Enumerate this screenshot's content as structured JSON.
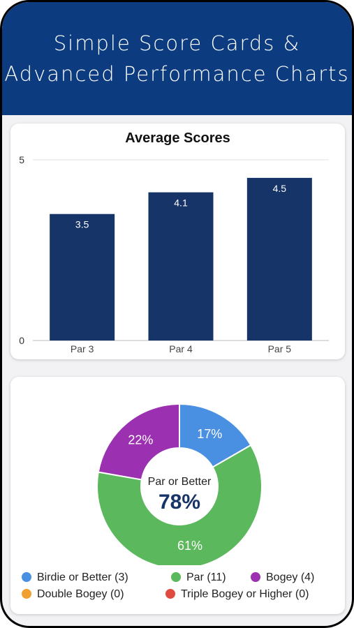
{
  "header": {
    "title_line1": "Simple Score Cards &",
    "title_line2": "Advanced Performance Charts"
  },
  "bar_chart": {
    "title": "Average Scores"
  },
  "donut_chart": {
    "center_label": "Par or Better",
    "center_value": "78%"
  },
  "legend": [
    {
      "label": "Birdie or Better (3)",
      "color": "#4a90e2"
    },
    {
      "label": "Par (11)",
      "color": "#5cb85c"
    },
    {
      "label": "Bogey (4)",
      "color": "#9b30b0"
    },
    {
      "label": "Double Bogey (0)",
      "color": "#f0a030"
    },
    {
      "label": "Triple Bogey or Higher (0)",
      "color": "#e04a3f"
    }
  ],
  "chart_data": [
    {
      "type": "bar",
      "title": "Average Scores",
      "categories": [
        "Par 3",
        "Par 4",
        "Par 5"
      ],
      "values": [
        3.5,
        4.1,
        4.5
      ],
      "value_labels": [
        "3.5",
        "4.1",
        "4.5"
      ],
      "ylim": [
        0,
        5
      ],
      "yticks": [
        "0",
        "5"
      ],
      "color": "#163467"
    },
    {
      "type": "pie",
      "categories": [
        "Birdie or Better",
        "Par",
        "Bogey",
        "Double Bogey",
        "Triple Bogey or Higher"
      ],
      "counts": [
        3,
        11,
        4,
        0,
        0
      ],
      "percent_labels": [
        "17%",
        "61%",
        "22%",
        "",
        ""
      ],
      "colors": [
        "#4a90e2",
        "#5cb85c",
        "#9b30b0",
        "#f0a030",
        "#e04a3f"
      ]
    }
  ]
}
